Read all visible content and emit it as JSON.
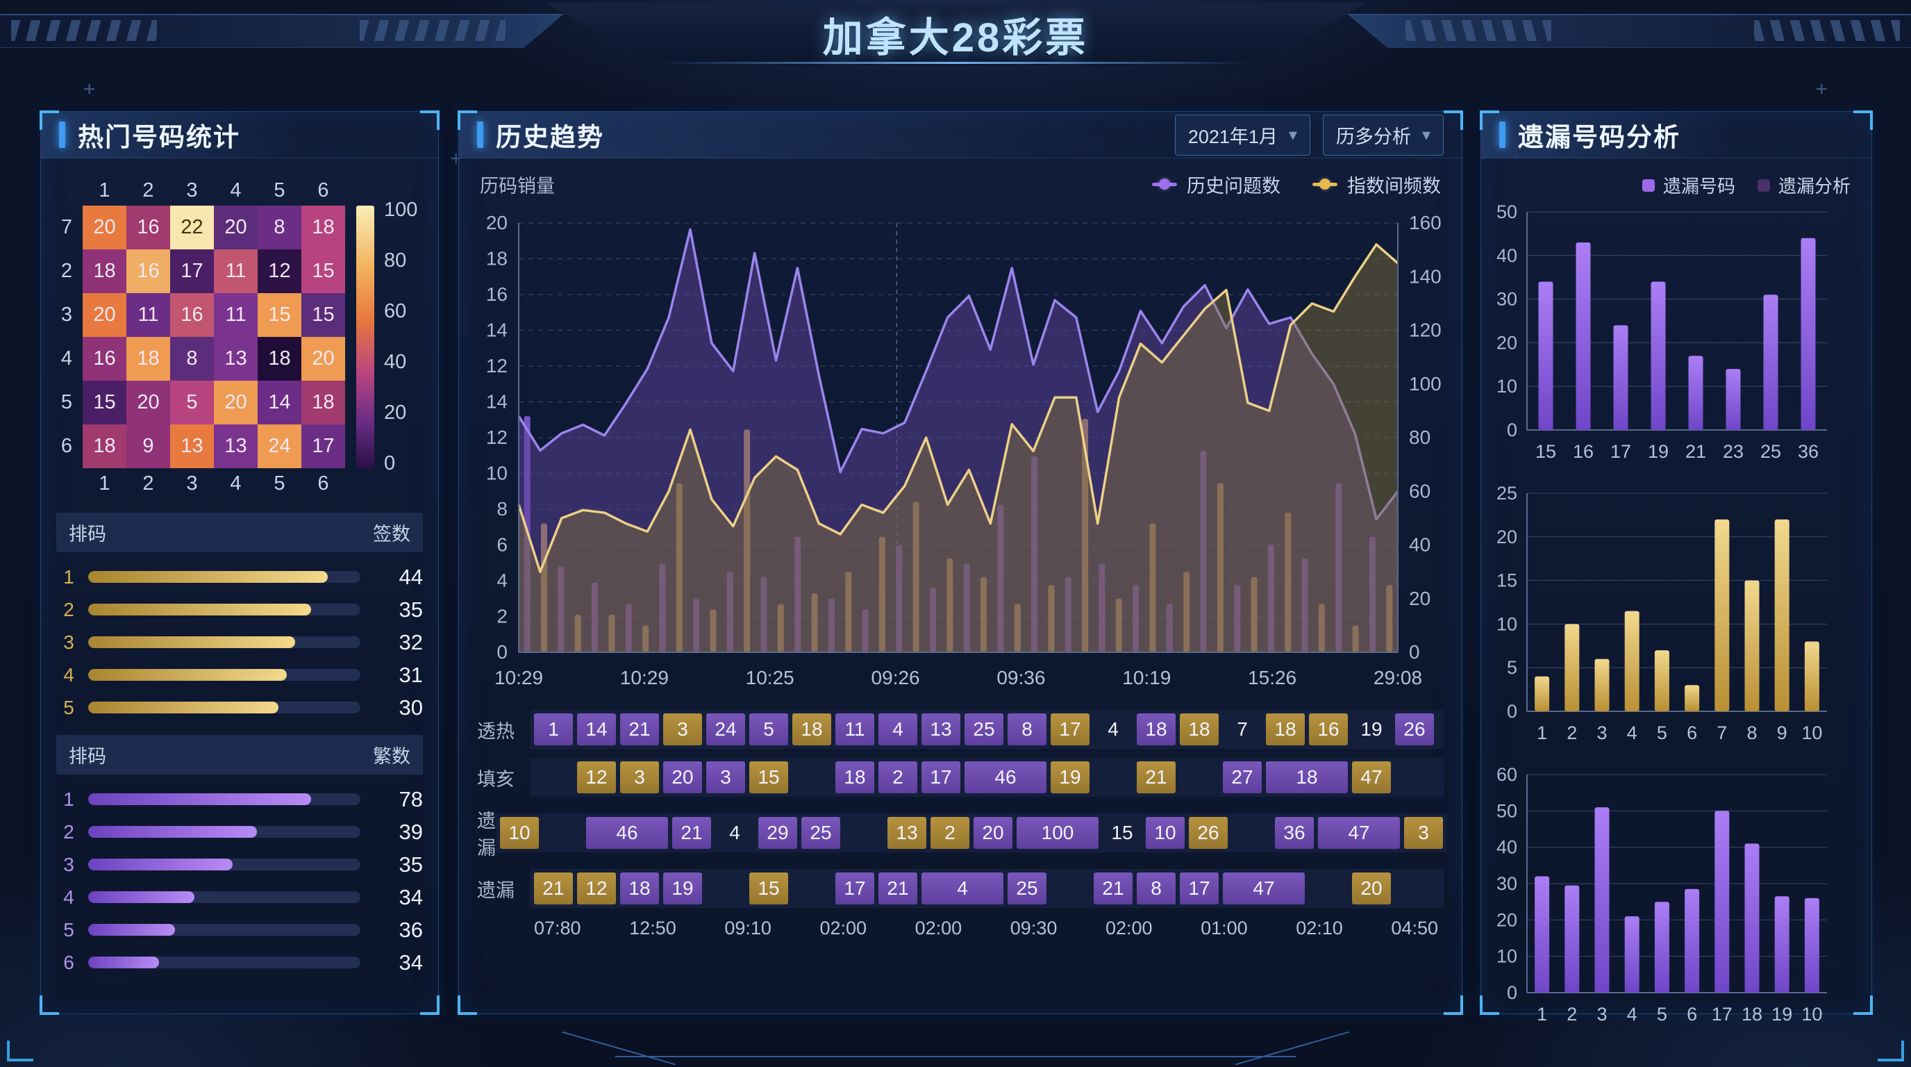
{
  "header": {
    "title": "加拿大28彩票"
  },
  "hot_panel": {
    "title": "热门号码统计",
    "heatmap": {
      "col_labels": [
        "1",
        "2",
        "3",
        "4",
        "5",
        "6"
      ],
      "row_labels": [
        "7",
        "2",
        "3",
        "4",
        "5",
        "6"
      ],
      "values": [
        [
          "20",
          "16",
          "22",
          "20",
          "8",
          "18"
        ],
        [
          "18",
          "16",
          "17",
          "11",
          "12",
          "15"
        ],
        [
          "20",
          "11",
          "16",
          "11",
          "15",
          "15"
        ],
        [
          "16",
          "18",
          "8",
          "13",
          "18",
          "20"
        ],
        [
          "15",
          "20",
          "5",
          "20",
          "14",
          "18"
        ],
        [
          "18",
          "9",
          "13",
          "13",
          "24",
          "17"
        ]
      ],
      "colors": [
        [
          "#e8793f",
          "#a13a6e",
          "#f7e6ad",
          "#5c2d7a",
          "#6b2d85",
          "#b8447f"
        ],
        [
          "#8f3277",
          "#efae63",
          "#4a1f66",
          "#c25570",
          "#2d1245",
          "#b8447f"
        ],
        [
          "#e8793f",
          "#6b2d85",
          "#c25570",
          "#7b3390",
          "#f09b52",
          "#5c2d7a"
        ],
        [
          "#8f3277",
          "#f09b52",
          "#5c2d7a",
          "#7b3390",
          "#1f0d38",
          "#f09b52"
        ],
        [
          "#4a1f66",
          "#8f3277",
          "#b8447f",
          "#f09b52",
          "#6b2d85",
          "#a13a6e"
        ],
        [
          "#a13a6e",
          "#8f3277",
          "#e8793f",
          "#7b3390",
          "#f09b52",
          "#6b2d85"
        ]
      ],
      "scale_ticks": [
        "100",
        "80",
        "60",
        "40",
        "20",
        "0"
      ]
    },
    "gold_list": {
      "header_left": "排码",
      "header_right": "签数",
      "rows": [
        {
          "label": "1",
          "value": "44",
          "pct": 88
        },
        {
          "label": "2",
          "value": "35",
          "pct": 82
        },
        {
          "label": "3",
          "value": "32",
          "pct": 76
        },
        {
          "label": "4",
          "value": "31",
          "pct": 73
        },
        {
          "label": "5",
          "value": "30",
          "pct": 70
        }
      ]
    },
    "purple_list": {
      "header_left": "排码",
      "header_right": "繁数",
      "rows": [
        {
          "label": "1",
          "value": "78",
          "pct": 82
        },
        {
          "label": "2",
          "value": "39",
          "pct": 62
        },
        {
          "label": "3",
          "value": "35",
          "pct": 53
        },
        {
          "label": "4",
          "value": "34",
          "pct": 39
        },
        {
          "label": "5",
          "value": "36",
          "pct": 32
        },
        {
          "label": "6",
          "value": "34",
          "pct": 26
        }
      ]
    }
  },
  "trend_panel": {
    "title": "历史趋势",
    "dropdown_month": "2021年1月",
    "dropdown_mode": "历多分析",
    "axis_label": "历码销量",
    "legend": [
      {
        "label": "历史问题数",
        "color": "#a06df0"
      },
      {
        "label": "指数间频数",
        "color": "#e8b84b"
      }
    ],
    "grid_rows": [
      {
        "label": "透热",
        "cells": [
          [
            "1",
            "p",
            1
          ],
          [
            "14",
            "p",
            1
          ],
          [
            "21",
            "p",
            1
          ],
          [
            "3",
            "g",
            1
          ],
          [
            "24",
            "p",
            1
          ],
          [
            "5",
            "p",
            1
          ],
          [
            "18",
            "g",
            1
          ],
          [
            "11",
            "p",
            1
          ],
          [
            "4",
            "p",
            1
          ],
          [
            "13",
            "p",
            1
          ],
          [
            "25",
            "p",
            1
          ],
          [
            "8",
            "p",
            1
          ],
          [
            "17",
            "g",
            1
          ],
          [
            "4",
            "n",
            1
          ],
          [
            "18",
            "p",
            1
          ],
          [
            "18",
            "g",
            1
          ],
          [
            "7",
            "n",
            1
          ],
          [
            "18",
            "g",
            1
          ],
          [
            "16",
            "g",
            1
          ],
          [
            "19",
            "n",
            1
          ],
          [
            "26",
            "p",
            1
          ]
        ]
      },
      {
        "label": "填亥",
        "cells": [
          [
            "",
            "s",
            1
          ],
          [
            "12",
            "g",
            1
          ],
          [
            "3",
            "g",
            1
          ],
          [
            "20",
            "p",
            1
          ],
          [
            "3",
            "p",
            1
          ],
          [
            "15",
            "g",
            1
          ],
          [
            "",
            "s",
            1
          ],
          [
            "18",
            "p",
            1
          ],
          [
            "2",
            "p",
            1
          ],
          [
            "17",
            "p",
            1
          ],
          [
            "46",
            "p",
            2
          ],
          [
            "19",
            "g",
            1
          ],
          [
            "",
            "s",
            1
          ],
          [
            "21",
            "g",
            1
          ],
          [
            "",
            "s",
            1
          ],
          [
            "27",
            "p",
            1
          ],
          [
            "18",
            "p",
            2
          ],
          [
            "47",
            "g",
            1
          ]
        ]
      },
      {
        "label": "遗漏",
        "cells": [
          [
            "10",
            "g",
            1
          ],
          [
            "",
            "s",
            1
          ],
          [
            "46",
            "p",
            2
          ],
          [
            "21",
            "p",
            1
          ],
          [
            "4",
            "n",
            1
          ],
          [
            "29",
            "p",
            1
          ],
          [
            "25",
            "p",
            1
          ],
          [
            "",
            "s",
            1
          ],
          [
            "13",
            "g",
            1
          ],
          [
            "2",
            "g",
            1
          ],
          [
            "20",
            "p",
            1
          ],
          [
            "100",
            "p",
            2
          ],
          [
            "15",
            "n",
            1
          ],
          [
            "10",
            "p",
            1
          ],
          [
            "26",
            "g",
            1
          ],
          [
            "",
            "s",
            1
          ],
          [
            "36",
            "p",
            1
          ],
          [
            "47",
            "p",
            2
          ],
          [
            "3",
            "g",
            1
          ]
        ]
      },
      {
        "label": "遗漏",
        "cells": [
          [
            "21",
            "g",
            1
          ],
          [
            "12",
            "g",
            1
          ],
          [
            "18",
            "p",
            1
          ],
          [
            "19",
            "p",
            1
          ],
          [
            "",
            "s",
            1
          ],
          [
            "15",
            "g",
            1
          ],
          [
            "",
            "s",
            1
          ],
          [
            "17",
            "p",
            1
          ],
          [
            "21",
            "p",
            1
          ],
          [
            "4",
            "p",
            2
          ],
          [
            "25",
            "p",
            1
          ],
          [
            "",
            "s",
            1
          ],
          [
            "21",
            "p",
            1
          ],
          [
            "8",
            "p",
            1
          ],
          [
            "17",
            "p",
            1
          ],
          [
            "47",
            "p",
            2
          ],
          [
            "",
            "s",
            1
          ],
          [
            "20",
            "g",
            1
          ]
        ]
      }
    ],
    "times": [
      "07:80",
      "12:50",
      "09:10",
      "02:00",
      "02:00",
      "09:30",
      "02:00",
      "01:00",
      "02:10",
      "04:50"
    ]
  },
  "miss_panel": {
    "title": "遗漏号码分析",
    "legend": [
      {
        "label": "遗漏号码",
        "color": "#9a6ae8"
      },
      {
        "label": "遗漏分析",
        "color": "#4a3068"
      }
    ]
  },
  "chart_data": [
    {
      "type": "line",
      "title": "历史趋势",
      "x_labels": [
        "10:29",
        "10:29",
        "10:25",
        "09:26",
        "09:36",
        "10:19",
        "15:26",
        "29:08"
      ],
      "left_ticks": [
        "20",
        "18",
        "16",
        "14",
        "12",
        "14",
        "12",
        "10",
        "8",
        "6",
        "4",
        "2",
        "0"
      ],
      "right_ticks": [
        "160",
        "140",
        "120",
        "100",
        "80",
        "60",
        "40",
        "20",
        "0"
      ],
      "left_max": 20,
      "right_max": 160,
      "vline_frac": 0.43,
      "series": [
        {
          "name": "历史问题数",
          "axis": "left",
          "color": "#9a86ec",
          "fill": "rgba(92,66,152,0.52)",
          "values": [
            11,
            9.4,
            10.2,
            10.6,
            10.1,
            11.6,
            13.2,
            15.6,
            19.7,
            14.4,
            13.1,
            18.6,
            13.6,
            17.9,
            12.9,
            8.4,
            10.4,
            10.2,
            10.7,
            13.1,
            15.6,
            16.6,
            14.1,
            17.9,
            13.4,
            16.4,
            15.6,
            11.2,
            13.1,
            15.9,
            14.4,
            16.1,
            17.1,
            15.1,
            16.9,
            15.3,
            15.6,
            13.9,
            12.5,
            10.2,
            6.2,
            7.5
          ]
        },
        {
          "name": "指数间频数",
          "axis": "right",
          "color": "#ecd086",
          "fill": "rgba(132,116,56,0.45)",
          "values": [
            55,
            30,
            50,
            53,
            52,
            48,
            45,
            60,
            83,
            57,
            47,
            65,
            73,
            68,
            48,
            44,
            55,
            52,
            62,
            80,
            55,
            68,
            48,
            85,
            75,
            95,
            95,
            48,
            95,
            115,
            108,
            118,
            128,
            135,
            93,
            90,
            122,
            130,
            127,
            140,
            152,
            145
          ]
        }
      ],
      "bars": {
        "purple": "#7e57d2",
        "gold": "#cfa44e",
        "values": [
          88,
          48,
          32,
          14,
          26,
          14,
          18,
          10,
          33,
          63,
          20,
          16,
          30,
          83,
          28,
          18,
          43,
          22,
          20,
          30,
          16,
          43,
          40,
          56,
          24,
          35,
          33,
          28,
          55,
          18,
          73,
          25,
          28,
          87,
          33,
          20,
          25,
          48,
          18,
          30,
          75,
          63,
          25,
          28,
          40,
          52,
          35,
          18,
          63,
          10,
          43,
          25
        ]
      }
    },
    {
      "type": "bar",
      "palette": "purple",
      "categories": [
        "15",
        "16",
        "17",
        "19",
        "21",
        "23",
        "25",
        "36"
      ],
      "values": [
        34,
        43,
        24,
        34,
        17,
        14,
        31,
        44
      ],
      "yticks": [
        0,
        10,
        20,
        30,
        40,
        50
      ],
      "ymax": 50
    },
    {
      "type": "bar",
      "palette": "gold",
      "categories": [
        "1",
        "2",
        "3",
        "4",
        "5",
        "6",
        "7",
        "8",
        "9",
        "10"
      ],
      "values": [
        4,
        10,
        6,
        11.5,
        7,
        3,
        22,
        15,
        22,
        8
      ],
      "yticks": [
        0,
        5,
        10,
        15,
        20,
        25
      ],
      "ymax": 25
    },
    {
      "type": "bar",
      "palette": "purple",
      "categories": [
        "1",
        "2",
        "3",
        "4",
        "5",
        "6",
        "17",
        "18",
        "19",
        "10"
      ],
      "values": [
        32,
        29.5,
        51,
        21,
        25,
        28.5,
        50,
        41,
        26.5,
        26
      ],
      "yticks": [
        0,
        10,
        20,
        30,
        40,
        50,
        60
      ],
      "ymax": 60
    }
  ]
}
